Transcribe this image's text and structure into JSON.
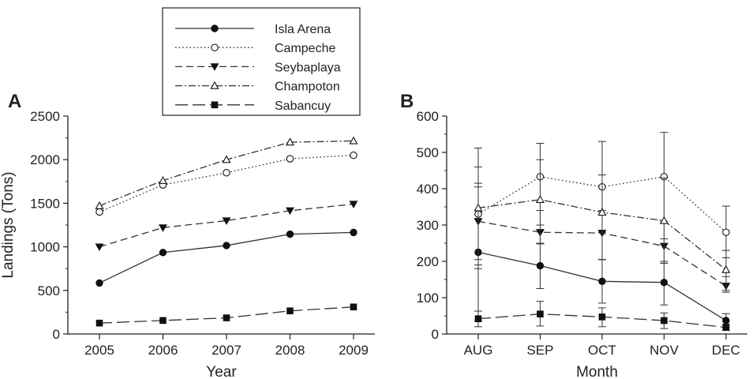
{
  "legend": {
    "placement": "top-left",
    "entries": [
      {
        "name": "Isla Arena",
        "style": "solid",
        "marker": "filled-circle"
      },
      {
        "name": "Campeche",
        "style": "dotted",
        "marker": "open-circle"
      },
      {
        "name": "Seybaplaya",
        "style": "dashed",
        "marker": "filled-triangle-down"
      },
      {
        "name": "Champoton",
        "style": "dash-dot",
        "marker": "open-triangle-up"
      },
      {
        "name": "Sabancuy",
        "style": "long-dash",
        "marker": "filled-square"
      }
    ]
  },
  "chart_data": [
    {
      "panel": "A",
      "type": "line",
      "xlabel": "Year",
      "ylabel": "Landings (Tons)",
      "categories": [
        "2005",
        "2006",
        "2007",
        "2008",
        "2009"
      ],
      "ylim": [
        0,
        2500
      ],
      "yticks": [
        0,
        500,
        1000,
        1500,
        2000,
        2500
      ],
      "grid": false,
      "series": [
        {
          "name": "Isla Arena",
          "values": [
            585,
            935,
            1015,
            1145,
            1165
          ]
        },
        {
          "name": "Campeche",
          "values": [
            1400,
            1710,
            1850,
            2010,
            2050
          ]
        },
        {
          "name": "Seybaplaya",
          "values": [
            1000,
            1220,
            1300,
            1415,
            1490
          ]
        },
        {
          "name": "Champoton",
          "values": [
            1470,
            1760,
            2000,
            2200,
            2215
          ]
        },
        {
          "name": "Sabancuy",
          "values": [
            125,
            155,
            185,
            265,
            310
          ]
        }
      ]
    },
    {
      "panel": "B",
      "type": "line",
      "xlabel": "Month",
      "ylabel": "",
      "categories": [
        "AUG",
        "SEP",
        "OCT",
        "NOV",
        "DEC"
      ],
      "ylim": [
        0,
        600
      ],
      "yticks": [
        0,
        100,
        200,
        300,
        400,
        500,
        600
      ],
      "grid": false,
      "series": [
        {
          "name": "Isla Arena",
          "values": [
            225,
            188,
            145,
            142,
            37
          ],
          "err_low": [
            35,
            125,
            85,
            80,
            18
          ],
          "err_high": [
            415,
            250,
            205,
            200,
            56
          ]
        },
        {
          "name": "Campeche",
          "values": [
            330,
            433,
            405,
            433,
            280
          ],
          "err_low": [
            190,
            340,
            280,
            310,
            210
          ],
          "err_high": [
            460,
            525,
            530,
            555,
            352
          ]
        },
        {
          "name": "Seybaplaya",
          "values": [
            310,
            280,
            278,
            242,
            132
          ],
          "err_low": [
            205,
            248,
            205,
            195,
            115
          ],
          "err_high": [
            405,
            300,
            340,
            262,
            158
          ]
        },
        {
          "name": "Champoton",
          "values": [
            347,
            370,
            335,
            312,
            177
          ],
          "err_low": [
            180,
            250,
            205,
            195,
            120
          ],
          "err_high": [
            512,
            480,
            438,
            430,
            230
          ]
        },
        {
          "name": "Sabancuy",
          "values": [
            42,
            55,
            47,
            37,
            18
          ],
          "err_low": [
            20,
            22,
            20,
            15,
            10
          ],
          "err_high": [
            63,
            90,
            72,
            58,
            27
          ]
        }
      ]
    }
  ]
}
